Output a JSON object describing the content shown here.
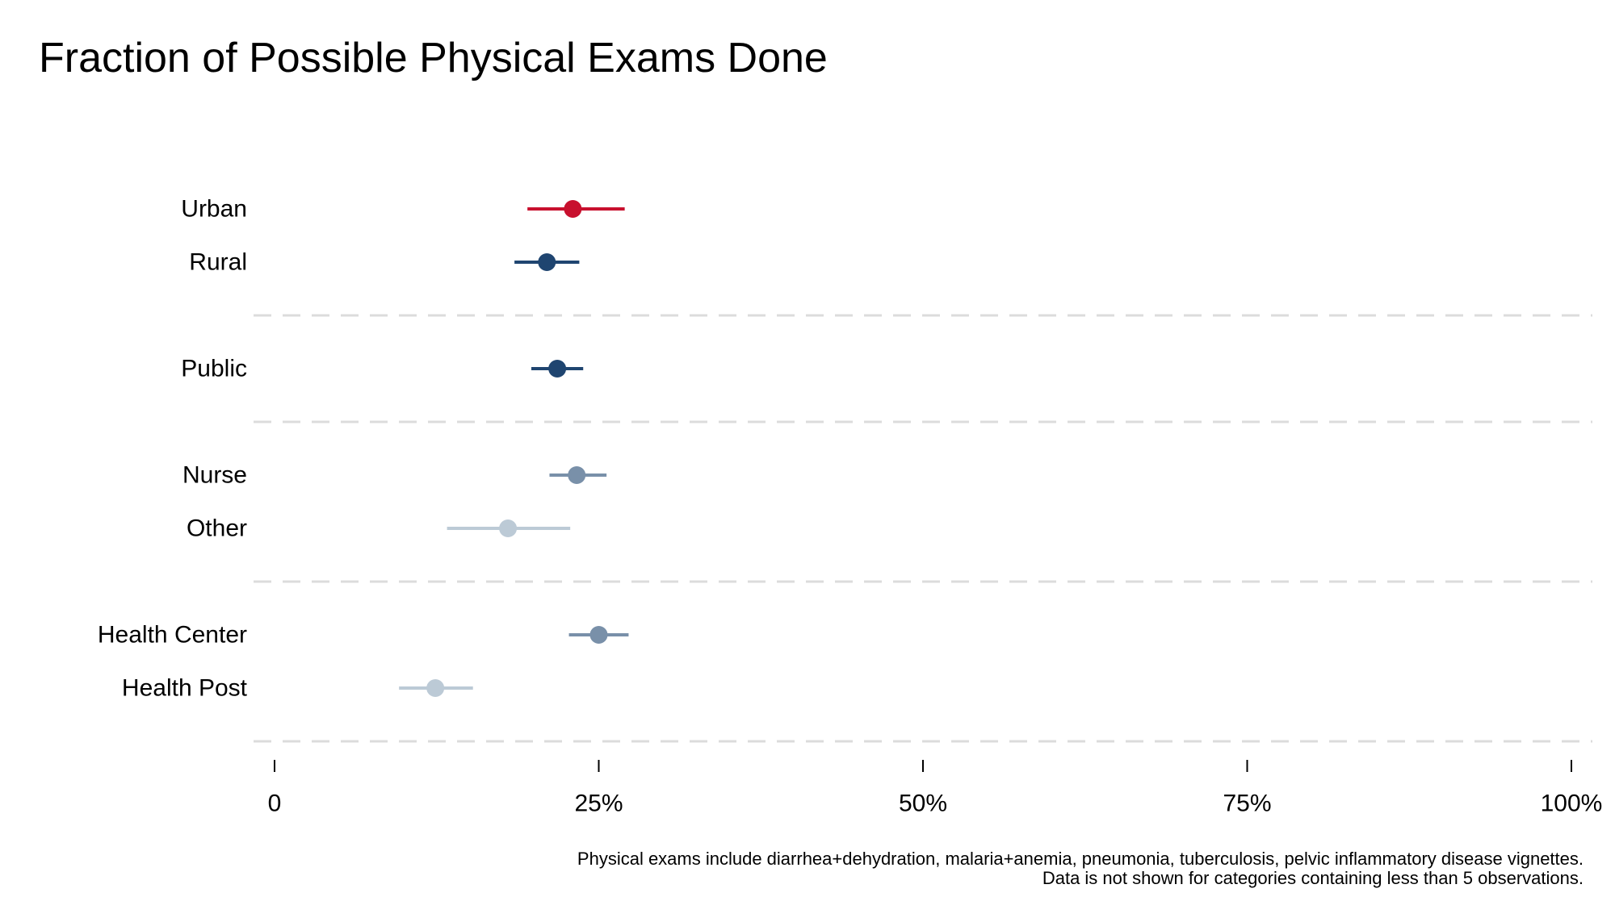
{
  "chart_data": {
    "type": "dot-whisker",
    "title": "Fraction of Possible Physical Exams Done",
    "xlim": [
      0,
      100
    ],
    "x_ticks": [
      {
        "value": 0,
        "label": "0"
      },
      {
        "value": 25,
        "label": "25%"
      },
      {
        "value": 50,
        "label": "50%"
      },
      {
        "value": 75,
        "label": "75%"
      },
      {
        "value": 100,
        "label": "100%"
      }
    ],
    "grid": false,
    "groups": [
      {
        "rows": [
          {
            "label": "Urban",
            "value": 23.0,
            "low": 19.5,
            "high": 27.0,
            "color": "#c8102e"
          },
          {
            "label": "Rural",
            "value": 21.0,
            "low": 18.5,
            "high": 23.5,
            "color": "#1f4570"
          }
        ]
      },
      {
        "rows": [
          {
            "label": "Public",
            "value": 21.8,
            "low": 19.8,
            "high": 23.8,
            "color": "#1f4570"
          }
        ]
      },
      {
        "rows": [
          {
            "label": "Nurse",
            "value": 23.3,
            "low": 21.2,
            "high": 25.6,
            "color": "#7990a9"
          },
          {
            "label": "Other",
            "value": 18.0,
            "low": 13.3,
            "high": 22.8,
            "color": "#bccad6"
          }
        ]
      },
      {
        "rows": [
          {
            "label": "Health Center",
            "value": 25.0,
            "low": 22.7,
            "high": 27.3,
            "color": "#7990a9"
          },
          {
            "label": "Health Post",
            "value": 12.4,
            "low": 9.6,
            "high": 15.3,
            "color": "#bccad6"
          }
        ]
      }
    ],
    "notes": [
      "Physical exams include diarrhea+dehydration, malaria+anemia, pneumonia, tuberculosis, pelvic inflammatory disease vignettes.",
      "Data is not shown for categories containing less than 5 observations."
    ]
  }
}
